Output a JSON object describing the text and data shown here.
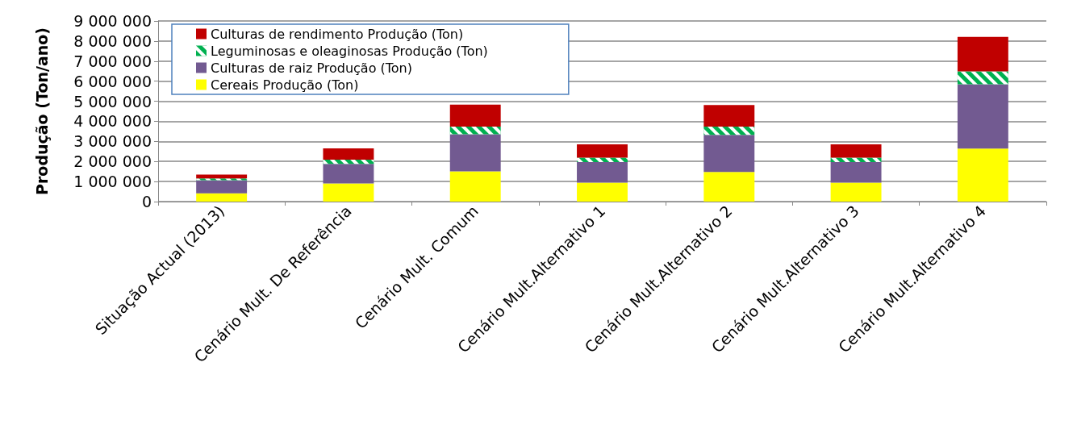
{
  "chart_data": {
    "type": "bar",
    "stacked": true,
    "ylabel": "Produção (Ton/ano)",
    "categories": [
      "Situação Actual (2013)",
      "Cenário Mult. De Referência",
      "Cenário Mult. Comum",
      "Cenário Mult.Alternativo 1",
      "Cenário Mult.Alternativo 2",
      "Cenário Mult.Alternativo 3",
      "Cenário Mult.Alternativo 4"
    ],
    "series": [
      {
        "name": "Cereais Produção (Ton)",
        "color": "#ffff00",
        "values": [
          410000,
          900000,
          1510000,
          940000,
          1480000,
          940000,
          2640000
        ]
      },
      {
        "name": "Culturas de raiz Produção (Ton)",
        "color": "#725a91",
        "values": [
          650000,
          980000,
          1840000,
          1030000,
          1840000,
          1030000,
          3210000
        ]
      },
      {
        "name": "Leguminosas e oleaginosas Produção (Ton)",
        "color": "#00b050",
        "values": [
          100000,
          210000,
          390000,
          220000,
          420000,
          220000,
          640000
        ]
      },
      {
        "name": "Culturas de rendimento Produção (Ton)",
        "color": "#c00000",
        "values": [
          190000,
          560000,
          1090000,
          660000,
          1070000,
          660000,
          1720000
        ]
      }
    ],
    "ylim": [
      0,
      9000000
    ],
    "yticks": [
      {
        "value": 0,
        "label": "0"
      },
      {
        "value": 1000000,
        "label": "1 000 000"
      },
      {
        "value": 2000000,
        "label": "2 000 000"
      },
      {
        "value": 3000000,
        "label": "3 000 000"
      },
      {
        "value": 4000000,
        "label": "4 000 000"
      },
      {
        "value": 5000000,
        "label": "5 000 000"
      },
      {
        "value": 6000000,
        "label": "6 000 000"
      },
      {
        "value": 7000000,
        "label": "7 000 000"
      },
      {
        "value": 8000000,
        "label": "8 000 000"
      },
      {
        "value": 9000000,
        "label": "9 000 000"
      }
    ],
    "grid": "y",
    "legend": "top left"
  }
}
